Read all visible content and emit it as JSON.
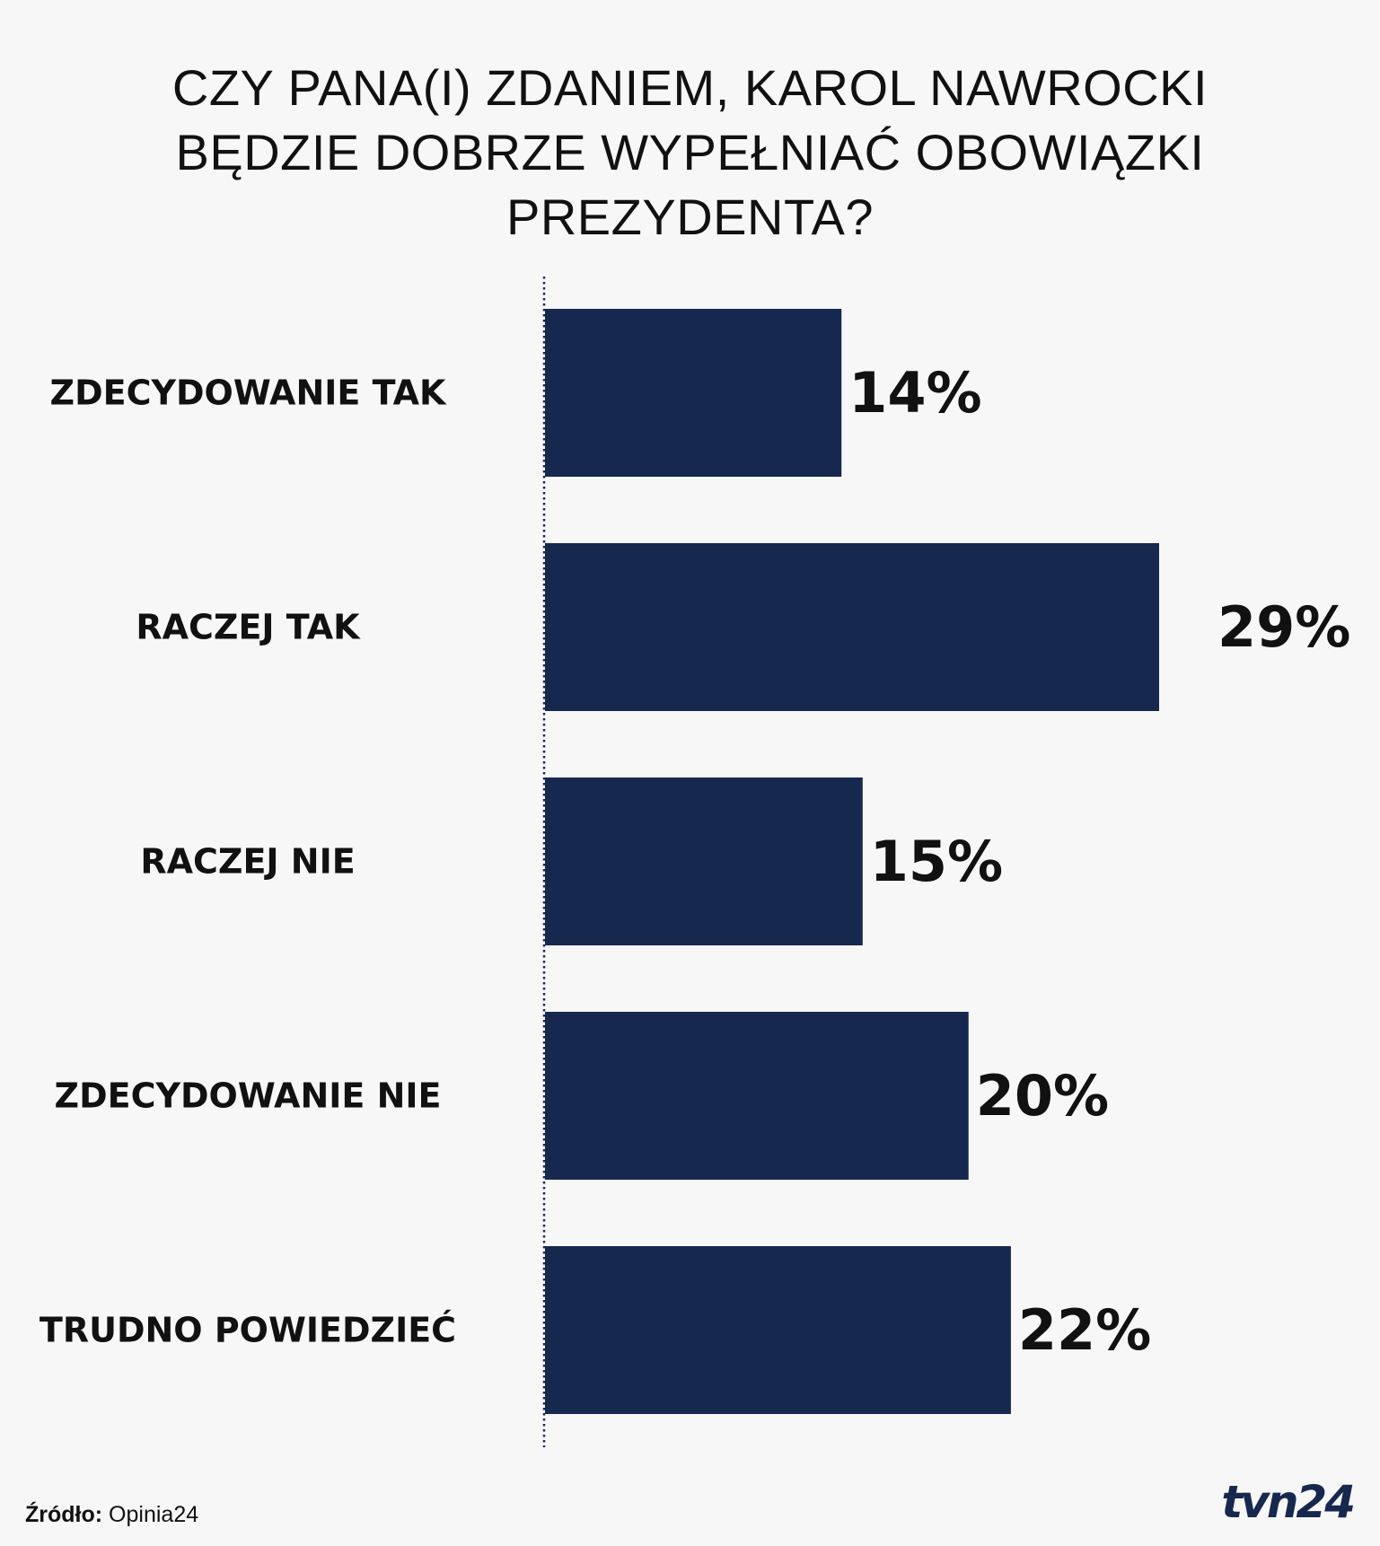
{
  "title_lines": [
    "CZY PANA(I) ZDANIEM, KAROL NAWROCKI",
    "BĘDZIE DOBRZE WYPEŁNIAĆ OBOWIĄZKI",
    "PREZYDENTA?"
  ],
  "chart_data": {
    "type": "bar",
    "orientation": "horizontal",
    "title": "CZY PANA(I) ZDANIEM, KAROL NAWROCKI BĘDZIE DOBRZE WYPEŁNIAĆ OBOWIĄZKI PREZYDENTA?",
    "categories": [
      "ZDECYDOWANIE TAK",
      "RACZEJ TAK",
      "RACZEJ NIE",
      "ZDECYDOWANIE NIE",
      "TRUDNO POWIEDZIEĆ"
    ],
    "values": [
      14,
      29,
      15,
      20,
      22
    ],
    "value_labels": [
      "14%",
      "29%",
      "15%",
      "20%",
      "22%"
    ],
    "unit": "%",
    "xlim": [
      0,
      29
    ],
    "xlabel": "",
    "ylabel": "",
    "grid": false,
    "bar_color": "#17284f"
  },
  "source": {
    "label": "Źródło:",
    "value": "Opinia24"
  },
  "logo": {
    "text": "tvn24",
    "color": "#17284f"
  }
}
